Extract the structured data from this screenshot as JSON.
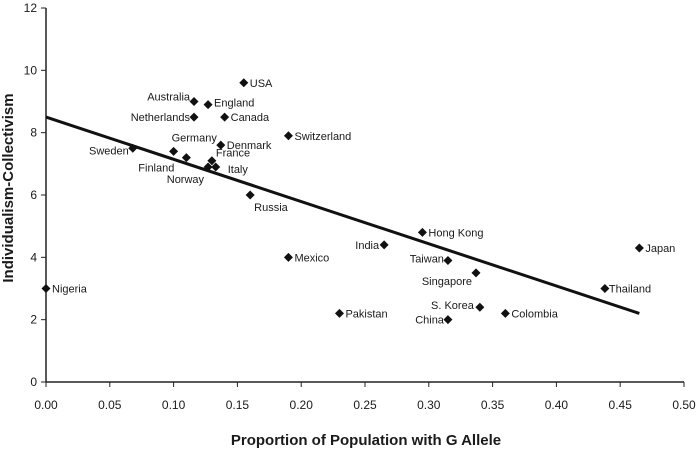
{
  "chart_data": {
    "type": "scatter",
    "title": "",
    "xlabel": "Proportion of Population with G Allele",
    "ylabel": "Individualism-Collectivism",
    "xlim": [
      0.0,
      0.5
    ],
    "ylim": [
      0,
      12
    ],
    "x_ticks": [
      "0.00",
      "0.05",
      "0.10",
      "0.15",
      "0.20",
      "0.25",
      "0.30",
      "0.35",
      "0.40",
      "0.45",
      "0.50"
    ],
    "y_ticks": [
      "0",
      "2",
      "4",
      "6",
      "8",
      "10",
      "12"
    ],
    "grid": false,
    "legend": "none",
    "trendline": {
      "x": [
        0.0,
        0.465
      ],
      "y": [
        8.5,
        2.2
      ]
    },
    "points": [
      {
        "label": "Nigeria",
        "x": 0.0,
        "y": 3.0
      },
      {
        "label": "Sweden",
        "x": 0.068,
        "y": 7.5
      },
      {
        "label": "Germany",
        "x": 0.1,
        "y": 7.4
      },
      {
        "label": "Finland",
        "x": 0.11,
        "y": 7.2
      },
      {
        "label": "Australia",
        "x": 0.116,
        "y": 9.0
      },
      {
        "label": "Netherlands",
        "x": 0.116,
        "y": 8.5
      },
      {
        "label": "England",
        "x": 0.127,
        "y": 8.9
      },
      {
        "label": "Norway",
        "x": 0.127,
        "y": 6.9
      },
      {
        "label": "France",
        "x": 0.13,
        "y": 7.1
      },
      {
        "label": "Italy",
        "x": 0.133,
        "y": 6.9
      },
      {
        "label": "Denmark",
        "x": 0.137,
        "y": 7.6
      },
      {
        "label": "Canada",
        "x": 0.14,
        "y": 8.5
      },
      {
        "label": "USA",
        "x": 0.155,
        "y": 9.6
      },
      {
        "label": "Russia",
        "x": 0.16,
        "y": 6.0
      },
      {
        "label": "Switzerland",
        "x": 0.19,
        "y": 7.9
      },
      {
        "label": "Mexico",
        "x": 0.19,
        "y": 4.0
      },
      {
        "label": "Pakistan",
        "x": 0.23,
        "y": 2.2
      },
      {
        "label": "India",
        "x": 0.265,
        "y": 4.4
      },
      {
        "label": "Hong Kong",
        "x": 0.295,
        "y": 4.8
      },
      {
        "label": "Taiwan",
        "x": 0.315,
        "y": 3.9
      },
      {
        "label": "China",
        "x": 0.315,
        "y": 2.0
      },
      {
        "label": "Singapore",
        "x": 0.337,
        "y": 3.5
      },
      {
        "label": "S. Korea",
        "x": 0.34,
        "y": 2.4
      },
      {
        "label": "Colombia",
        "x": 0.36,
        "y": 2.2
      },
      {
        "label": "Thailand",
        "x": 0.438,
        "y": 3.0
      },
      {
        "label": "Japan",
        "x": 0.465,
        "y": 4.3
      }
    ]
  }
}
